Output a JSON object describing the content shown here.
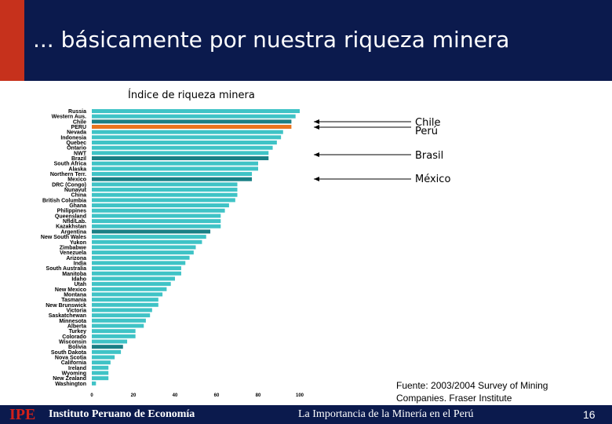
{
  "slide": {
    "title": "... básicamente por nuestra riqueza minera",
    "source": "Fuente: 2003/2004 Survey of Mining Companies. Fraser Institute",
    "footer_logo": "IPE",
    "footer_institute": "Instituto Peruano de Economía",
    "footer_topic": "La Importancia de la Minería en el Perú",
    "page_number": "16"
  },
  "callouts": [
    {
      "label": "Chile"
    },
    {
      "label": "Perú"
    },
    {
      "label": "Brasil"
    },
    {
      "label": "México"
    }
  ],
  "colors": {
    "header_bg": "#0b1a4d",
    "header_accent": "#c6311c",
    "bar_default": "#3fc3c6",
    "bar_highlight": "#1a7f85",
    "bar_peru": "#e8741f"
  },
  "chart_data": {
    "type": "bar",
    "orientation": "horizontal",
    "title": "Índice de riqueza minera",
    "xlim": [
      0,
      100
    ],
    "xticks": [
      "0",
      "20",
      "40",
      "60",
      "80",
      "100"
    ],
    "categories": [
      "Russia",
      "Western Aus.",
      "Chile",
      "PERU",
      "Nevada",
      "Indonesia",
      "Quebec",
      "Ontario",
      "NWT",
      "Brazil",
      "South Africa",
      "Alaska",
      "Northern Terr.",
      "Mexico",
      "DRC (Congo)",
      "Nunavut",
      "China",
      "British Columbia",
      "Ghana",
      "Philippines",
      "Queensland",
      "Nfld/Lab.",
      "Kazakhstan",
      "Argentina",
      "New South Wales",
      "Yukon",
      "Zimbabwe",
      "Venezuela",
      "Arizona",
      "India",
      "South Australia",
      "Manitoba",
      "Idaho",
      "Utah",
      "New Mexico",
      "Montana",
      "Tasmania",
      "New Brunswick",
      "Victoria",
      "Saskatchewan",
      "Minnesota",
      "Alberta",
      "Turkey",
      "Colorado",
      "Wisconsin",
      "Bolivia",
      "South Dakota",
      "Nova Scotia",
      "California",
      "Ireland",
      "Wyoming",
      "New Zealand",
      "Washington"
    ],
    "values": [
      100,
      98,
      96,
      96,
      92,
      91,
      89,
      87,
      85,
      85,
      80,
      80,
      77,
      77,
      70,
      70,
      70,
      69,
      66,
      64,
      62,
      62,
      62,
      57,
      55,
      53,
      50,
      49,
      47,
      45,
      43,
      43,
      40,
      38,
      36,
      34,
      32,
      32,
      29,
      28,
      26,
      25,
      21,
      21,
      17,
      15,
      14,
      11,
      9,
      8,
      8,
      8,
      2
    ],
    "highlight": [
      "Chile",
      "PERU",
      "Brazil",
      "Mexico",
      "Argentina",
      "Bolivia"
    ]
  }
}
